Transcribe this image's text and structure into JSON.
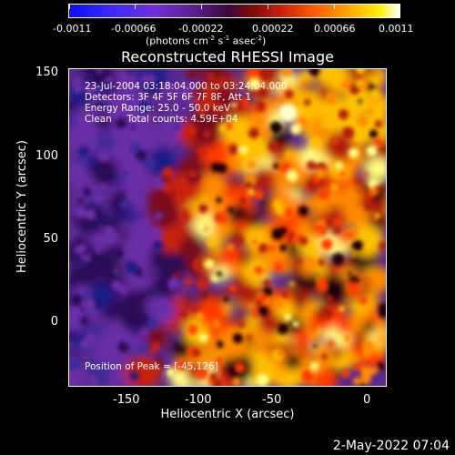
{
  "colorbar": {
    "tick_labels": [
      "-0.0011",
      "-0.00066",
      "-0.00022",
      "0.00022",
      "0.00066",
      "0.0011"
    ],
    "unit_main": "(photons cm",
    "unit_sup1": "-2",
    "unit_mid1": " s",
    "unit_sup2": "-1",
    "unit_mid2": " asec",
    "unit_sup3": "-2",
    "unit_end": ")"
  },
  "title": "Reconstructed RHESSI Image",
  "info": {
    "time_range": "23-Jul-2004 03:18:04.000 to 03:24:04.000",
    "detectors": "Detectors: 3F 4F 5F 6F 7F 8F, Att 1",
    "energy": "Energy Range: 25.0 - 50.0 keV",
    "clean": "Clean     Total counts: 4.59E+04",
    "peak": "Position of Peak = [-45,126]"
  },
  "axes": {
    "xlabel": "Heliocentric X (arcsec)",
    "ylabel": "Heliocentric Y (arcsec)",
    "xticks": [
      "-150",
      "-100",
      "-50",
      "0"
    ],
    "yticks": [
      "150",
      "100",
      "50",
      "0"
    ],
    "xrange": [
      -180,
      10
    ],
    "yrange": [
      -38,
      155
    ]
  },
  "datestamp": "2-May-2022 07:04"
}
